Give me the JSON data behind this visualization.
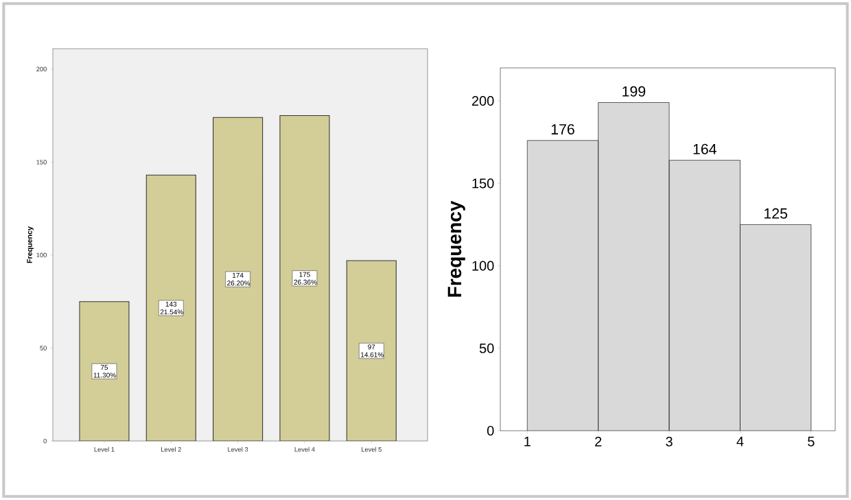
{
  "chart_data": [
    {
      "type": "bar",
      "ylabel": "Frequency",
      "categories": [
        "Level 1",
        "Level 2",
        "Level 3",
        "Level 4",
        "Level 5"
      ],
      "values": [
        75,
        143,
        174,
        175,
        97
      ],
      "color": "#d3ce97",
      "value_labels": [
        "75 11.30%",
        "143 21.54%",
        "174 26.20%",
        "175 26.36%",
        "97 14.61%"
      ],
      "ylim": [
        0,
        211
      ],
      "yticks": [
        0,
        50,
        100,
        150,
        200
      ]
    },
    {
      "type": "histogram",
      "ylabel": "Frequency",
      "bins": [
        1,
        2,
        3,
        4,
        5
      ],
      "values": [
        176,
        199,
        164,
        125
      ],
      "color": "#d9d9d9",
      "data_labels": true,
      "xlim": [
        0.62,
        5.34
      ],
      "ylim": [
        0,
        220
      ],
      "xticks": [
        1,
        2,
        3,
        4,
        5
      ],
      "yticks": [
        0,
        50,
        100,
        150,
        200
      ]
    }
  ]
}
